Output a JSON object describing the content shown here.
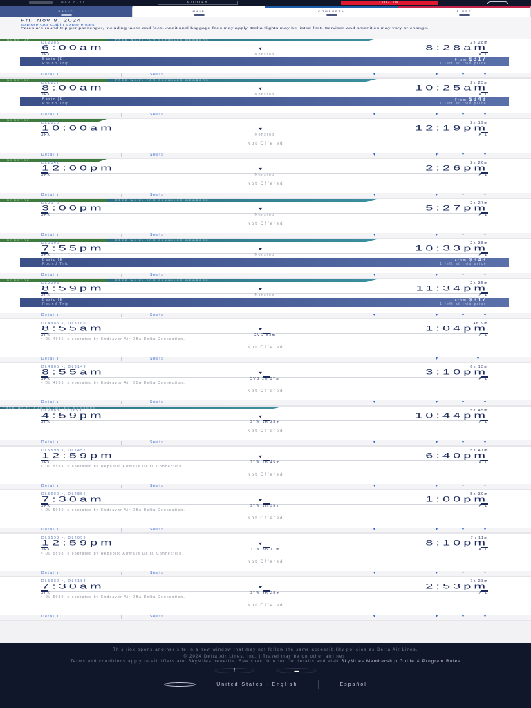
{
  "topbar": {
    "date_range": "Nov 8-11",
    "modify_label": "MODIFY",
    "login_label": "LOG IN"
  },
  "tabs": [
    {
      "label": "BASIC",
      "active": true
    },
    {
      "label": "MAIN",
      "active": false
    },
    {
      "label": "COMFORT+",
      "active": false
    },
    {
      "label": "FIRST",
      "active": false
    }
  ],
  "header": {
    "date": "Fri, Nov 8, 2024",
    "explore_link": "Explore Our Cabin Experiences",
    "disclaimer": "Fares are round-trip per passenger, including taxes and fees. Additional baggage fees may apply. Delta flights may be listed first. Services and amenities may vary or change."
  },
  "labels": {
    "nonstop": "NONSTOP",
    "wifi": "FREE WI-FI FOR SKYMILES MEMBERS",
    "details": "Details",
    "seats": "Seats",
    "not_offered": "Not Offered",
    "basic_fare": "Basic (E)",
    "round_trip": "Round Trip",
    "from": "From",
    "left_at_price": "1 left at this price",
    "origin": "JFK",
    "destination": "ATL",
    "nonstop_text": "Nonstop"
  },
  "flights": [
    {
      "flight_no": "DL2285",
      "duration": "2h 28m",
      "depart": "6:00am",
      "arrive": "8:28am",
      "stops": "Nonstop",
      "banner": "both",
      "price": "$317",
      "note": ""
    },
    {
      "flight_no": "DL2227",
      "duration": "2h 25m",
      "depart": "8:00am",
      "arrive": "10:25am",
      "stops": "Nonstop",
      "banner": "both",
      "price": "$348",
      "note": ""
    },
    {
      "flight_no": "DL1020",
      "duration": "2h 19m",
      "depart": "10:00am",
      "arrive": "12:19pm",
      "stops": "Nonstop",
      "banner": "nonstop",
      "price": "",
      "note": ""
    },
    {
      "flight_no": "DL2342",
      "duration": "2h 26m",
      "depart": "12:00pm",
      "arrive": "2:26pm",
      "stops": "Nonstop",
      "banner": "nonstop",
      "price": "",
      "note": ""
    },
    {
      "flight_no": "DL2170",
      "duration": "2h 27m",
      "depart": "3:00pm",
      "arrive": "5:27pm",
      "stops": "Nonstop",
      "banner": "both",
      "price": "",
      "note": ""
    },
    {
      "flight_no": "DL2190",
      "duration": "2h 38m",
      "depart": "7:55pm",
      "arrive": "10:33pm",
      "stops": "Nonstop",
      "banner": "both",
      "price": "$348",
      "note": ""
    },
    {
      "flight_no": "DL2293",
      "duration": "2h 35m",
      "depart": "8:59pm",
      "arrive": "11:34pm",
      "stops": "Nonstop",
      "banner": "both",
      "price": "$317",
      "note": ""
    },
    {
      "flight_no": "DL4985 ¹, DL3160",
      "duration": "4h 9m",
      "depart": "8:55am",
      "arrive": "1:04pm",
      "stops": "CVG 52m",
      "banner": "none",
      "price": "",
      "note": "¹ DL 4985 is operated by Endeavor Air DBA Delta Connection."
    },
    {
      "flight_no": "DL4985 ¹, DL3149",
      "duration": "6h 15m",
      "depart": "8:55am",
      "arrive": "3:10pm",
      "stops": "CVG 2h 37m",
      "banner": "none",
      "price": "",
      "note": "¹ DL 4985 is operated by Endeavor Air DBA Delta Connection."
    },
    {
      "flight_no": "DL2883, DL1653",
      "duration": "5h 45m",
      "depart": "4:59pm",
      "arrive": "10:44pm",
      "stops": "DTW 1h 38m",
      "banner": "wifi",
      "price": "",
      "note": ""
    },
    {
      "flight_no": "DL5598 ¹, DL1457",
      "duration": "5h 41m",
      "depart": "12:59pm",
      "arrive": "6:40pm",
      "stops": "DTW 1h 45m",
      "banner": "none",
      "price": "",
      "note": "¹ DL 5598 is operated by Republic Airways Delta Connection."
    },
    {
      "flight_no": "DL5080 ¹, DL2856",
      "duration": "5h 30m",
      "depart": "7:30am",
      "arrive": "1:00pm",
      "stops": "DTW 1h 35m",
      "banner": "none",
      "price": "",
      "note": "¹ DL 5080 is operated by Endeavor Air DBA Delta Connection."
    },
    {
      "flight_no": "DL5598 ¹, DL2053",
      "duration": "7h 11m",
      "depart": "12:59pm",
      "arrive": "8:10pm",
      "stops": "DTW 3h 11m",
      "banner": "none",
      "price": "",
      "note": "¹ DL 5598 is operated by Republic Airways Delta Connection."
    },
    {
      "flight_no": "DL5080 ¹, DL2188",
      "duration": "7h 23m",
      "depart": "7:30am",
      "arrive": "2:53pm",
      "stops": "DTW 3h 28m",
      "banner": "none",
      "price": "",
      "note": "¹ DL 5080 is operated by Endeavor Air DBA Delta Connection."
    }
  ],
  "footer": {
    "new_window": "This link opens another site in a new window that may not follow the same accessibility policies as Delta Air Lines.",
    "copyright": "© 2024 Delta Air Lines, Inc. | Travel may be on other airlines.",
    "terms": "Terms and conditions apply to all offers and SkyMiles benefits. See specific offer for details and visit",
    "terms_link": "SkyMiles Membership Guide & Program Rules",
    "lang_us": "United States - English",
    "lang_es": "Español"
  },
  "colors": {
    "navy": "#10172a",
    "delta_blue": "#1b2a5c",
    "link_blue": "#3366cc",
    "login_red": "#e01933",
    "nonstop_green": "#3f7a3f",
    "wifi_teal": "#2d6f82",
    "fare_bar": "#3b5088"
  }
}
